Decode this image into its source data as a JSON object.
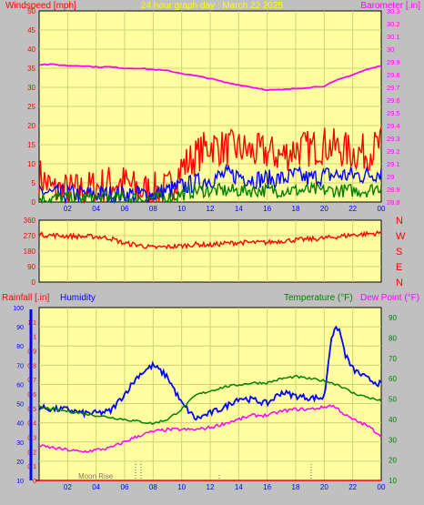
{
  "title": "24 hour graph day : March 22 2025",
  "colors": {
    "background": "#c0c0c0",
    "plot_bg": "#ffffa0",
    "grid": "#cfcf7a",
    "wind": "#ff0000",
    "gust": "#ff0000",
    "avg": "#0000ff",
    "green": "#008000",
    "baro": "#ff00ff",
    "humidity": "#0000ff",
    "temperature": "#008000",
    "dewpoint": "#ff00ff",
    "rain": "#ff0000",
    "title": "#ffff00"
  },
  "chart_data": [
    {
      "type": "line",
      "labels": {
        "left": "Windspeed [mph]",
        "right": "Barometer [.in]"
      },
      "x_ticks": [
        "02",
        "04",
        "06",
        "08",
        "10",
        "12",
        "14",
        "16",
        "18",
        "20",
        "22",
        "00"
      ],
      "y_left_ticks": [
        "0",
        "5",
        "10",
        "15",
        "20",
        "25",
        "30",
        "35",
        "40",
        "45",
        "50"
      ],
      "y_right_ticks": [
        "28.8",
        "28.9",
        "29",
        "29.1",
        "29.2",
        "29.3",
        "29.4",
        "29.5",
        "29.6",
        "29.7",
        "29.8",
        "29.9",
        "30",
        "30.1",
        "30.2",
        "30.3"
      ],
      "ylim_left": [
        0,
        50
      ],
      "ylim_right": [
        28.8,
        30.3
      ],
      "x": [
        0,
        1,
        2,
        3,
        4,
        5,
        6,
        7,
        8,
        9,
        10,
        11,
        12,
        13,
        14,
        15,
        16,
        17,
        18,
        19,
        20,
        21,
        22,
        23,
        24
      ],
      "series": [
        {
          "key": "gust",
          "values": [
            7,
            3,
            3,
            3,
            4,
            5,
            5,
            3,
            3,
            3,
            9,
            12,
            15,
            14,
            14,
            13,
            13,
            12,
            14,
            14,
            15,
            14,
            13,
            13,
            15
          ]
        },
        {
          "key": "average",
          "values": [
            3,
            2,
            2,
            2,
            2,
            2,
            2,
            2,
            2,
            3,
            4,
            5,
            6,
            7,
            7,
            6,
            6,
            6,
            7,
            6,
            7,
            7,
            7,
            7,
            8
          ]
        },
        {
          "key": "low",
          "values": [
            1,
            1,
            1,
            1,
            1,
            1,
            1,
            1,
            1,
            1,
            2,
            3,
            3,
            3,
            3,
            3,
            3,
            3,
            3,
            3,
            3,
            3,
            3,
            3,
            4
          ]
        },
        {
          "key": "barometer",
          "values": [
            29.88,
            29.88,
            29.87,
            29.87,
            29.86,
            29.86,
            29.85,
            29.85,
            29.84,
            29.83,
            29.81,
            29.79,
            29.77,
            29.74,
            29.72,
            29.7,
            29.68,
            29.68,
            29.69,
            29.7,
            29.71,
            29.76,
            29.8,
            29.84,
            29.87
          ]
        }
      ]
    },
    {
      "type": "line",
      "labels": {
        "right": [
          "N",
          "W",
          "S",
          "E",
          "N"
        ]
      },
      "y_ticks": [
        "360",
        "270",
        "180",
        "90",
        "0"
      ],
      "ylim": [
        0,
        360
      ],
      "x": [
        0,
        1,
        2,
        3,
        4,
        5,
        6,
        7,
        8,
        9,
        10,
        11,
        12,
        13,
        14,
        15,
        16,
        17,
        18,
        19,
        20,
        21,
        22,
        23,
        24
      ],
      "series": [
        {
          "key": "direction",
          "values": [
            275,
            272,
            268,
            265,
            265,
            255,
            225,
            215,
            200,
            205,
            210,
            220,
            215,
            225,
            230,
            230,
            230,
            240,
            245,
            250,
            255,
            265,
            275,
            280,
            285
          ]
        }
      ]
    },
    {
      "type": "line",
      "labels": {
        "rain": "Rainfall [.in]",
        "humidity": "Humidity",
        "temperature": "Temperature (°F)",
        "dewpoint": "Dew Point (°F)",
        "annotation": "Moon Rise"
      },
      "y_humidity_ticks": [
        "10",
        "20",
        "30",
        "40",
        "50",
        "60",
        "70",
        "80",
        "90",
        "100"
      ],
      "y_rain_ticks": [
        "0",
        "0.1",
        "0.2",
        "0.3",
        "0.4",
        "0.5",
        "0.6",
        "0.7",
        "0.8",
        "0.9",
        "1",
        "1.1"
      ],
      "y_temp_ticks": [
        "10",
        "20",
        "30",
        "40",
        "50",
        "60",
        "70",
        "80",
        "90"
      ],
      "ylim_humidity": [
        10,
        100
      ],
      "ylim_rain": [
        0,
        1.2
      ],
      "ylim_temp": [
        10,
        95
      ],
      "x": [
        0,
        1,
        2,
        3,
        4,
        5,
        6,
        7,
        8,
        9,
        10,
        11,
        12,
        13,
        14,
        15,
        16,
        17,
        18,
        19,
        20,
        20.5,
        21,
        21.5,
        22,
        23,
        24
      ],
      "series": [
        {
          "key": "humidity",
          "values": [
            48,
            47,
            47,
            45,
            45,
            46,
            55,
            65,
            70,
            64,
            50,
            42,
            45,
            48,
            53,
            52,
            50,
            56,
            54,
            53,
            53,
            85,
            90,
            75,
            68,
            63,
            60
          ]
        },
        {
          "key": "temperature",
          "values": [
            46,
            45,
            44,
            43,
            42,
            41,
            40,
            39,
            38,
            40,
            45,
            52,
            54,
            56,
            57,
            58,
            58,
            60,
            61,
            60,
            59,
            58,
            57,
            55,
            53,
            51,
            49
          ]
        },
        {
          "key": "dewpoint",
          "values": [
            27,
            26,
            25,
            24,
            25,
            26,
            29,
            32,
            34,
            35,
            35,
            35,
            36,
            38,
            40,
            42,
            42,
            44,
            45,
            45,
            46,
            47,
            45,
            42,
            40,
            37,
            32
          ]
        },
        {
          "key": "rain",
          "values": [
            0,
            0,
            0,
            0,
            0,
            0,
            0,
            0,
            0,
            0,
            0,
            0,
            0,
            0,
            0,
            0,
            0,
            0,
            0,
            0,
            0,
            0,
            0,
            0,
            0,
            0,
            0
          ]
        }
      ]
    }
  ]
}
